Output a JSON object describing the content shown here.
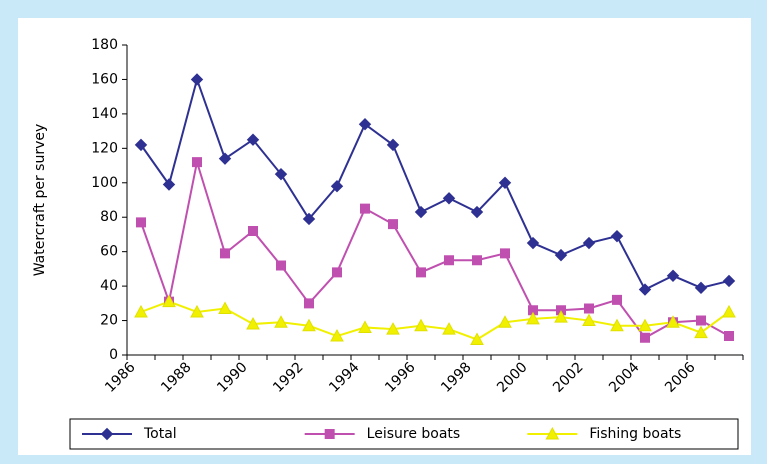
{
  "chart_data": {
    "type": "line",
    "y_label": "Watercraft per survey",
    "categories": [
      "1986",
      null,
      "1988",
      null,
      "1990",
      null,
      "1992",
      null,
      "1994",
      null,
      "1996",
      null,
      "1998",
      null,
      "2000",
      null,
      "2002",
      null,
      "2004",
      null,
      "2006",
      null
    ],
    "series": [
      {
        "name": "Total",
        "color": "#2e3192",
        "marker": "diamond",
        "values": [
          122,
          99,
          160,
          114,
          125,
          105,
          79,
          98,
          134,
          122,
          83,
          91,
          83,
          100,
          65,
          58,
          65,
          69,
          38,
          46,
          39,
          43
        ]
      },
      {
        "name": "Leisure boats",
        "color": "#c050b0",
        "marker": "square",
        "values": [
          77,
          31,
          112,
          59,
          72,
          52,
          30,
          48,
          85,
          76,
          48,
          55,
          55,
          59,
          26,
          26,
          27,
          32,
          10,
          19,
          20,
          11
        ]
      },
      {
        "name": "Fishing boats",
        "color": "#f0f000",
        "marker": "triangle",
        "values": [
          25,
          31,
          25,
          27,
          18,
          19,
          17,
          11,
          16,
          15,
          17,
          15,
          9,
          19,
          21,
          22,
          20,
          17,
          17,
          19,
          13,
          25
        ]
      }
    ],
    "ylim": [
      0,
      180
    ],
    "yticks": [
      0,
      20,
      40,
      60,
      80,
      100,
      120,
      140,
      160,
      180
    ],
    "legend": "bottom"
  }
}
